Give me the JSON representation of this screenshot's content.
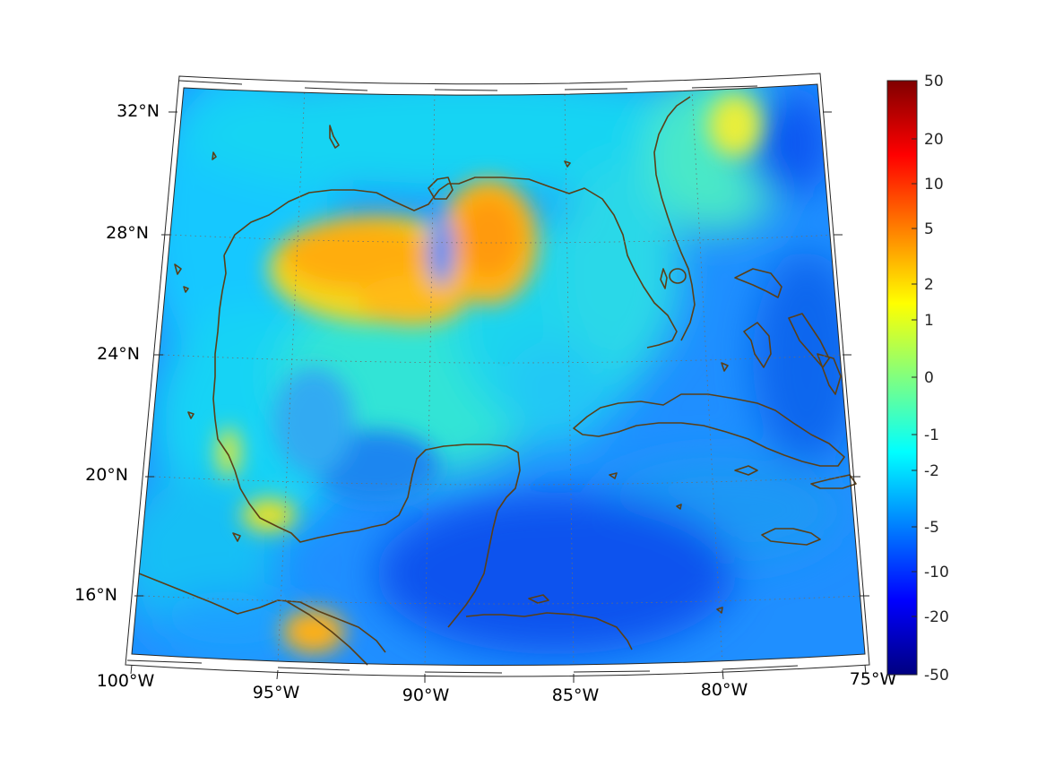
{
  "map": {
    "lon_labels": [
      "100°W",
      "95°W",
      "90°W",
      "85°W",
      "80°W",
      "75°W"
    ],
    "lat_labels": [
      "32°N",
      "28°N",
      "24°N",
      "20°N",
      "16°N"
    ],
    "lon_range": [
      -100,
      -75
    ],
    "lat_range": [
      14.5,
      33
    ],
    "land_color": "#5a3f17",
    "graticule": "dotted"
  },
  "colorbar": {
    "colormap": "jet",
    "tick_labels": [
      "50",
      "20",
      "10",
      "5",
      "2",
      "1",
      "0",
      "-1",
      "-2",
      "-5",
      "-10",
      "-20",
      "-50"
    ]
  }
}
